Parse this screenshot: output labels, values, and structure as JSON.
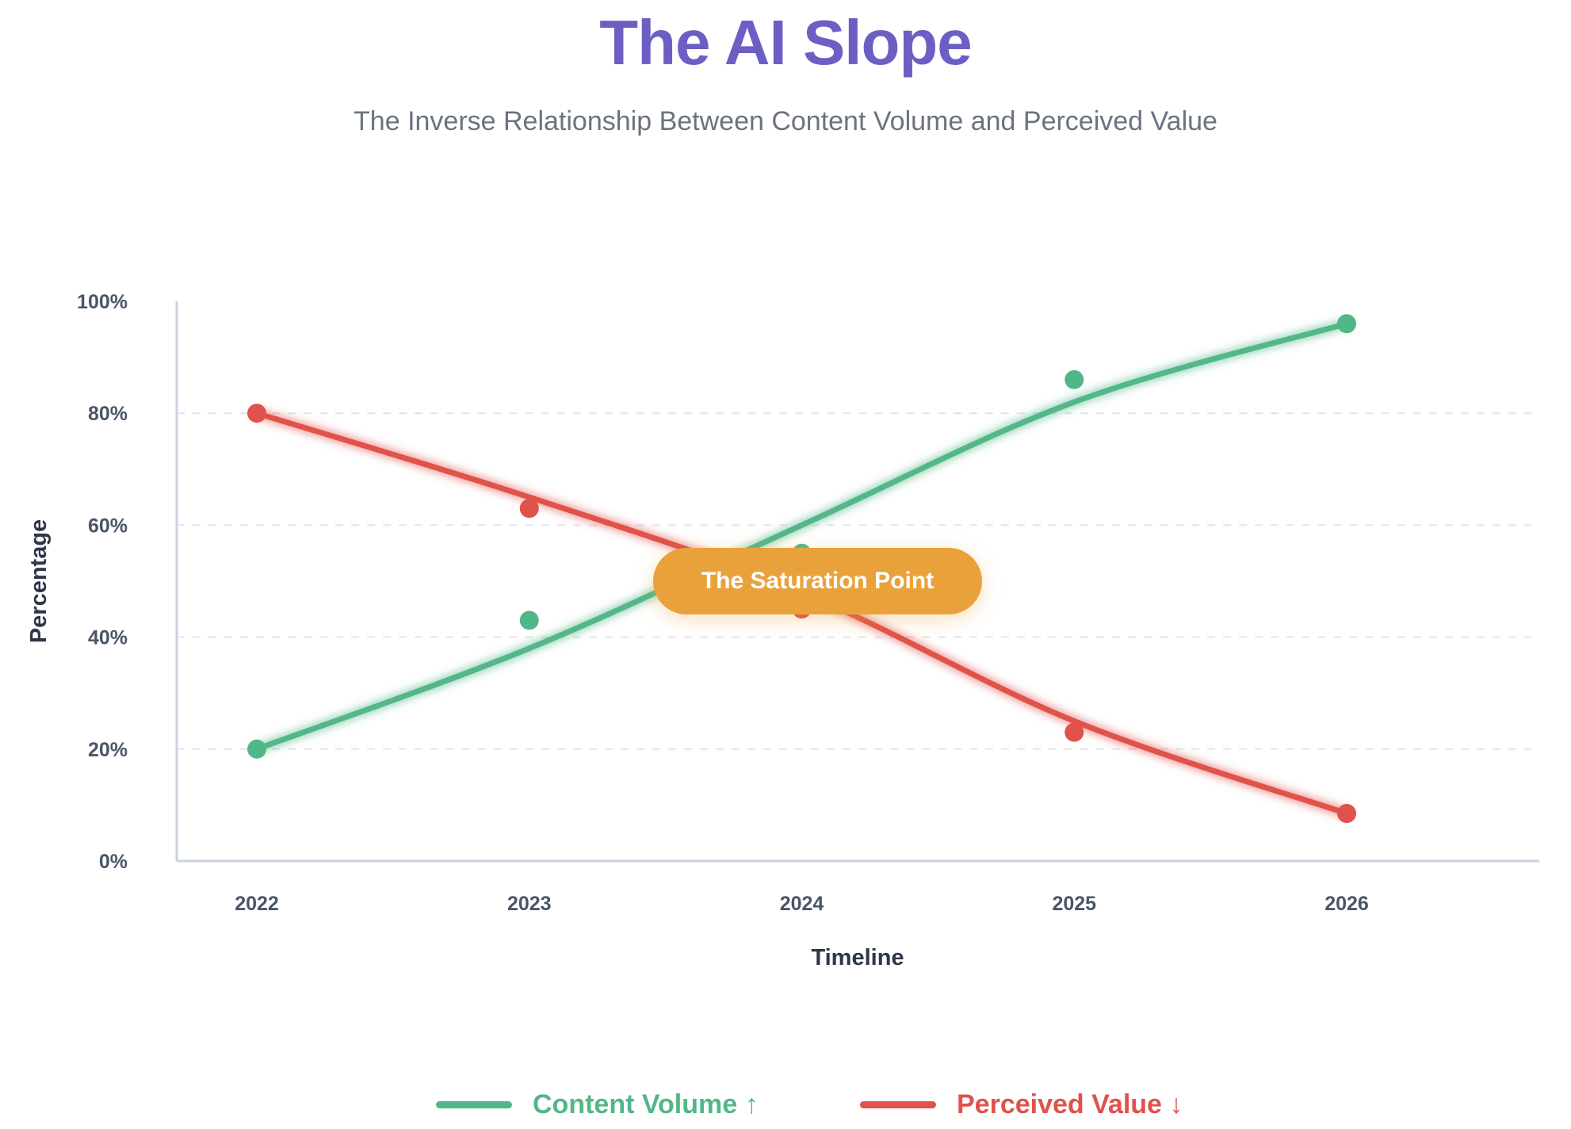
{
  "header": {
    "title": "The AI Slope",
    "subtitle": "The Inverse Relationship Between Content Volume and Perceived Value"
  },
  "annotation": {
    "label": "The Saturation Point",
    "color": "#e9a23b"
  },
  "chart_data": {
    "type": "line",
    "title": "The AI Slope",
    "subtitle": "The Inverse Relationship Between Content Volume and Perceived Value",
    "xlabel": "Timeline",
    "ylabel": "Percentage",
    "categories": [
      "2022",
      "2023",
      "2024",
      "2025",
      "2026"
    ],
    "ylim": [
      0,
      100
    ],
    "yticks": [
      "0%",
      "20%",
      "40%",
      "60%",
      "80%",
      "100%"
    ],
    "grid": "horizontal dashed",
    "legend_position": "bottom",
    "series": [
      {
        "name": "Content Volume ↑",
        "color": "#52b788",
        "points": [
          20,
          43,
          55,
          86,
          96
        ],
        "trend": [
          20,
          38,
          60,
          82,
          96
        ]
      },
      {
        "name": "Perceived Value ↓",
        "color": "#e0524c",
        "points": [
          80,
          63,
          45,
          23,
          8.5
        ],
        "trend": [
          80,
          65,
          48,
          25,
          8.5
        ]
      }
    ]
  }
}
